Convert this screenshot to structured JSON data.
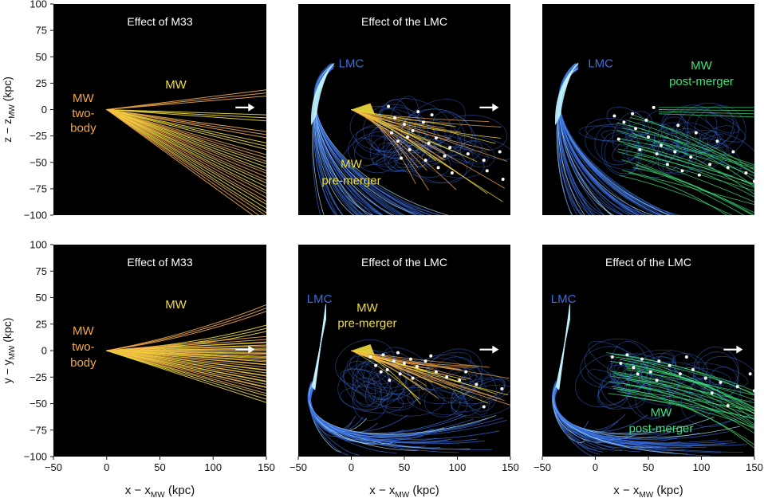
{
  "colors": {
    "panel_bg": "#000000",
    "mw_yellow": "#f2de3a",
    "mw_orange": "#f0a84a",
    "lmc_blue": "#3a6fe0",
    "lmc_cyan": "#bff3ff",
    "post_green": "#3ee07a",
    "satellite_white": "#ffffff",
    "arrow_white": "#ffffff",
    "axis_text": "#111111"
  },
  "icons": {
    "direction_arrow": "right-arrow-icon"
  },
  "chart_data": [
    {
      "type": "line",
      "row": "top",
      "col": 1,
      "title": "Effect of M33",
      "ylabel": "z − z",
      "ylabel_sub": "MW",
      "ylabel_unit": " (kpc)",
      "xlim": [
        -50,
        150
      ],
      "ylim": [
        -100,
        100
      ],
      "series": [
        {
          "name": "MW",
          "family": "fan",
          "x0": 0,
          "y0": 0,
          "slopes_deg": [
            6,
            -3,
            -9,
            -13,
            -17,
            -20,
            -23,
            -26,
            -29,
            -32,
            -35
          ]
        }
      ],
      "labels": [
        {
          "text": "MW",
          "x": 65,
          "y": 20,
          "color_key": "mw_yellow"
        },
        {
          "text": "MW",
          "x": -22,
          "y": 7,
          "color_key": "mw_orange"
        },
        {
          "text": "two-",
          "x": -22,
          "y": -7,
          "color_key": "mw_orange"
        },
        {
          "text": "body",
          "x": -22,
          "y": -21,
          "color_key": "mw_orange"
        }
      ],
      "arrow": {
        "x0": 121,
        "x1": 139,
        "y": 2
      }
    },
    {
      "type": "line",
      "row": "top",
      "col": 2,
      "title": "Effect of the LMC",
      "xlim": [
        -50,
        150
      ],
      "ylim": [
        -100,
        100
      ],
      "series": [
        {
          "name": "LMC",
          "family": "lmc",
          "side": "z"
        },
        {
          "name": "MW pre-merger",
          "family": "pre",
          "spread": 30
        }
      ],
      "satellites": [
        [
          35,
          3
        ],
        [
          41,
          -8
        ],
        [
          50,
          -14
        ],
        [
          58,
          -20
        ],
        [
          68,
          -12
        ],
        [
          80,
          -27
        ],
        [
          93,
          -36
        ],
        [
          110,
          -42
        ],
        [
          125,
          -48
        ],
        [
          140,
          -40
        ],
        [
          44,
          -30
        ],
        [
          55,
          -38
        ],
        [
          70,
          -48
        ],
        [
          82,
          -55
        ],
        [
          95,
          -60
        ],
        [
          63,
          -2
        ],
        [
          76,
          -5
        ],
        [
          53,
          -26
        ],
        [
          38,
          -22
        ],
        [
          143,
          -66
        ],
        [
          128,
          -58
        ],
        [
          47,
          -46
        ],
        [
          88,
          -44
        ],
        [
          73,
          -32
        ]
      ],
      "labels": [
        {
          "text": "LMC",
          "x": 0,
          "y": 40,
          "color_key": "lmc_blue"
        },
        {
          "text": "MW",
          "x": 0,
          "y": -55,
          "color_key": "mw_yellow"
        },
        {
          "text": "pre-merger",
          "x": 0,
          "y": -71,
          "color_key": "mw_yellow"
        }
      ],
      "arrow": {
        "x0": 121,
        "x1": 139,
        "y": 2
      }
    },
    {
      "type": "line",
      "row": "top",
      "col": 3,
      "title": "",
      "xlim": [
        -50,
        150
      ],
      "ylim": [
        -100,
        100
      ],
      "series": [
        {
          "name": "LMC",
          "family": "lmc",
          "side": "z"
        },
        {
          "name": "MW post-merger",
          "family": "post"
        }
      ],
      "satellites": [
        [
          18,
          -6
        ],
        [
          27,
          -12
        ],
        [
          38,
          -18
        ],
        [
          50,
          -26
        ],
        [
          62,
          -34
        ],
        [
          75,
          -40
        ],
        [
          90,
          -45
        ],
        [
          108,
          -52
        ],
        [
          125,
          -55
        ],
        [
          142,
          -60
        ],
        [
          35,
          -4
        ],
        [
          48,
          -10
        ],
        [
          58,
          -42
        ],
        [
          68,
          -52
        ],
        [
          82,
          -58
        ],
        [
          98,
          -62
        ],
        [
          130,
          -40
        ],
        [
          115,
          -30
        ],
        [
          22,
          -28
        ],
        [
          42,
          -38
        ],
        [
          78,
          -15
        ],
        [
          95,
          -22
        ],
        [
          150,
          -68
        ],
        [
          55,
          2
        ]
      ],
      "labels": [
        {
          "text": "LMC",
          "x": 5,
          "y": 40,
          "color_key": "lmc_blue"
        },
        {
          "text": "MW",
          "x": 100,
          "y": 38,
          "color_key": "post_green"
        },
        {
          "text": "post-merger",
          "x": 100,
          "y": 23,
          "color_key": "post_green"
        }
      ],
      "arrow": null
    },
    {
      "type": "line",
      "row": "bottom",
      "col": 1,
      "title": "Effect of M33",
      "ylabel": "y − y",
      "ylabel_sub": "MW",
      "ylabel_unit": " (kpc)",
      "xlabel": "x − x",
      "xlabel_sub": "MW",
      "xlabel_unit": " (kpc)",
      "xlim": [
        -50,
        150
      ],
      "ylim": [
        -100,
        100
      ],
      "series": [
        {
          "name": "MW",
          "family": "fan",
          "x0": 0,
          "y0": 0,
          "slopes_deg": [
            15,
            8,
            4,
            2,
            0.5,
            -1,
            -2.5,
            -4,
            -6,
            -8,
            -10,
            -12,
            -14,
            -17
          ]
        }
      ],
      "labels": [
        {
          "text": "MW",
          "x": 65,
          "y": 40,
          "color_key": "mw_yellow"
        },
        {
          "text": "MW",
          "x": -22,
          "y": 15,
          "color_key": "mw_orange"
        },
        {
          "text": "two-",
          "x": -22,
          "y": 0,
          "color_key": "mw_orange"
        },
        {
          "text": "body",
          "x": -22,
          "y": -15,
          "color_key": "mw_orange"
        }
      ],
      "arrow": {
        "x0": 121,
        "x1": 139,
        "y": 1
      }
    },
    {
      "type": "line",
      "row": "bottom",
      "col": 2,
      "title": "Effect of the LMC",
      "xlabel": "x − x",
      "xlabel_sub": "MW",
      "xlabel_unit": " (kpc)",
      "xlim": [
        -50,
        150
      ],
      "ylim": [
        -100,
        100
      ],
      "series": [
        {
          "name": "LMC",
          "family": "lmc",
          "side": "y"
        },
        {
          "name": "MW pre-merger",
          "family": "pre",
          "spread": 16
        }
      ],
      "satellites": [
        [
          18,
          -6
        ],
        [
          23,
          -14
        ],
        [
          30,
          -4
        ],
        [
          34,
          -18
        ],
        [
          40,
          -10
        ],
        [
          46,
          -22
        ],
        [
          50,
          -12
        ],
        [
          56,
          -8
        ],
        [
          62,
          -15
        ],
        [
          70,
          -10
        ],
        [
          80,
          -20
        ],
        [
          90,
          -25
        ],
        [
          102,
          -28
        ],
        [
          118,
          -32
        ],
        [
          142,
          -36
        ],
        [
          125,
          -53
        ],
        [
          108,
          -20
        ],
        [
          44,
          -2
        ],
        [
          36,
          -28
        ],
        [
          28,
          -20
        ],
        [
          58,
          -26
        ],
        [
          75,
          -5
        ]
      ],
      "labels": [
        {
          "text": "LMC",
          "x": -30,
          "y": 45,
          "color_key": "lmc_blue"
        },
        {
          "text": "MW",
          "x": 15,
          "y": 37,
          "color_key": "mw_yellow"
        },
        {
          "text": "pre-merger",
          "x": 15,
          "y": 22,
          "color_key": "mw_yellow"
        }
      ],
      "arrow": {
        "x0": 121,
        "x1": 139,
        "y": 1
      }
    },
    {
      "type": "line",
      "row": "bottom",
      "col": 3,
      "title": "Effect of the LMC",
      "xlabel": "x − x",
      "xlabel_sub": "MW",
      "xlabel_unit": " (kpc)",
      "xlim": [
        -50,
        150
      ],
      "ylim": [
        -100,
        100
      ],
      "series": [
        {
          "name": "LMC",
          "family": "lmc",
          "side": "y"
        },
        {
          "name": "MW post-merger",
          "family": "post_y"
        }
      ],
      "satellites": [
        [
          16,
          -6
        ],
        [
          24,
          -12
        ],
        [
          30,
          -4
        ],
        [
          36,
          -16
        ],
        [
          44,
          -8
        ],
        [
          52,
          -20
        ],
        [
          60,
          -10
        ],
        [
          70,
          -14
        ],
        [
          80,
          -22
        ],
        [
          92,
          -18
        ],
        [
          104,
          -26
        ],
        [
          118,
          -30
        ],
        [
          134,
          -34
        ],
        [
          150,
          -38
        ],
        [
          125,
          -52
        ],
        [
          110,
          -40
        ],
        [
          40,
          -22
        ],
        [
          58,
          -28
        ],
        [
          86,
          -6
        ],
        [
          146,
          -22
        ]
      ],
      "labels": [
        {
          "text": "LMC",
          "x": -30,
          "y": 45,
          "color_key": "lmc_blue"
        },
        {
          "text": "MW",
          "x": 62,
          "y": -62,
          "color_key": "post_green"
        },
        {
          "text": "post-merger",
          "x": 62,
          "y": -77,
          "color_key": "post_green"
        }
      ],
      "arrow": {
        "x0": 121,
        "x1": 139,
        "y": 1
      }
    }
  ]
}
